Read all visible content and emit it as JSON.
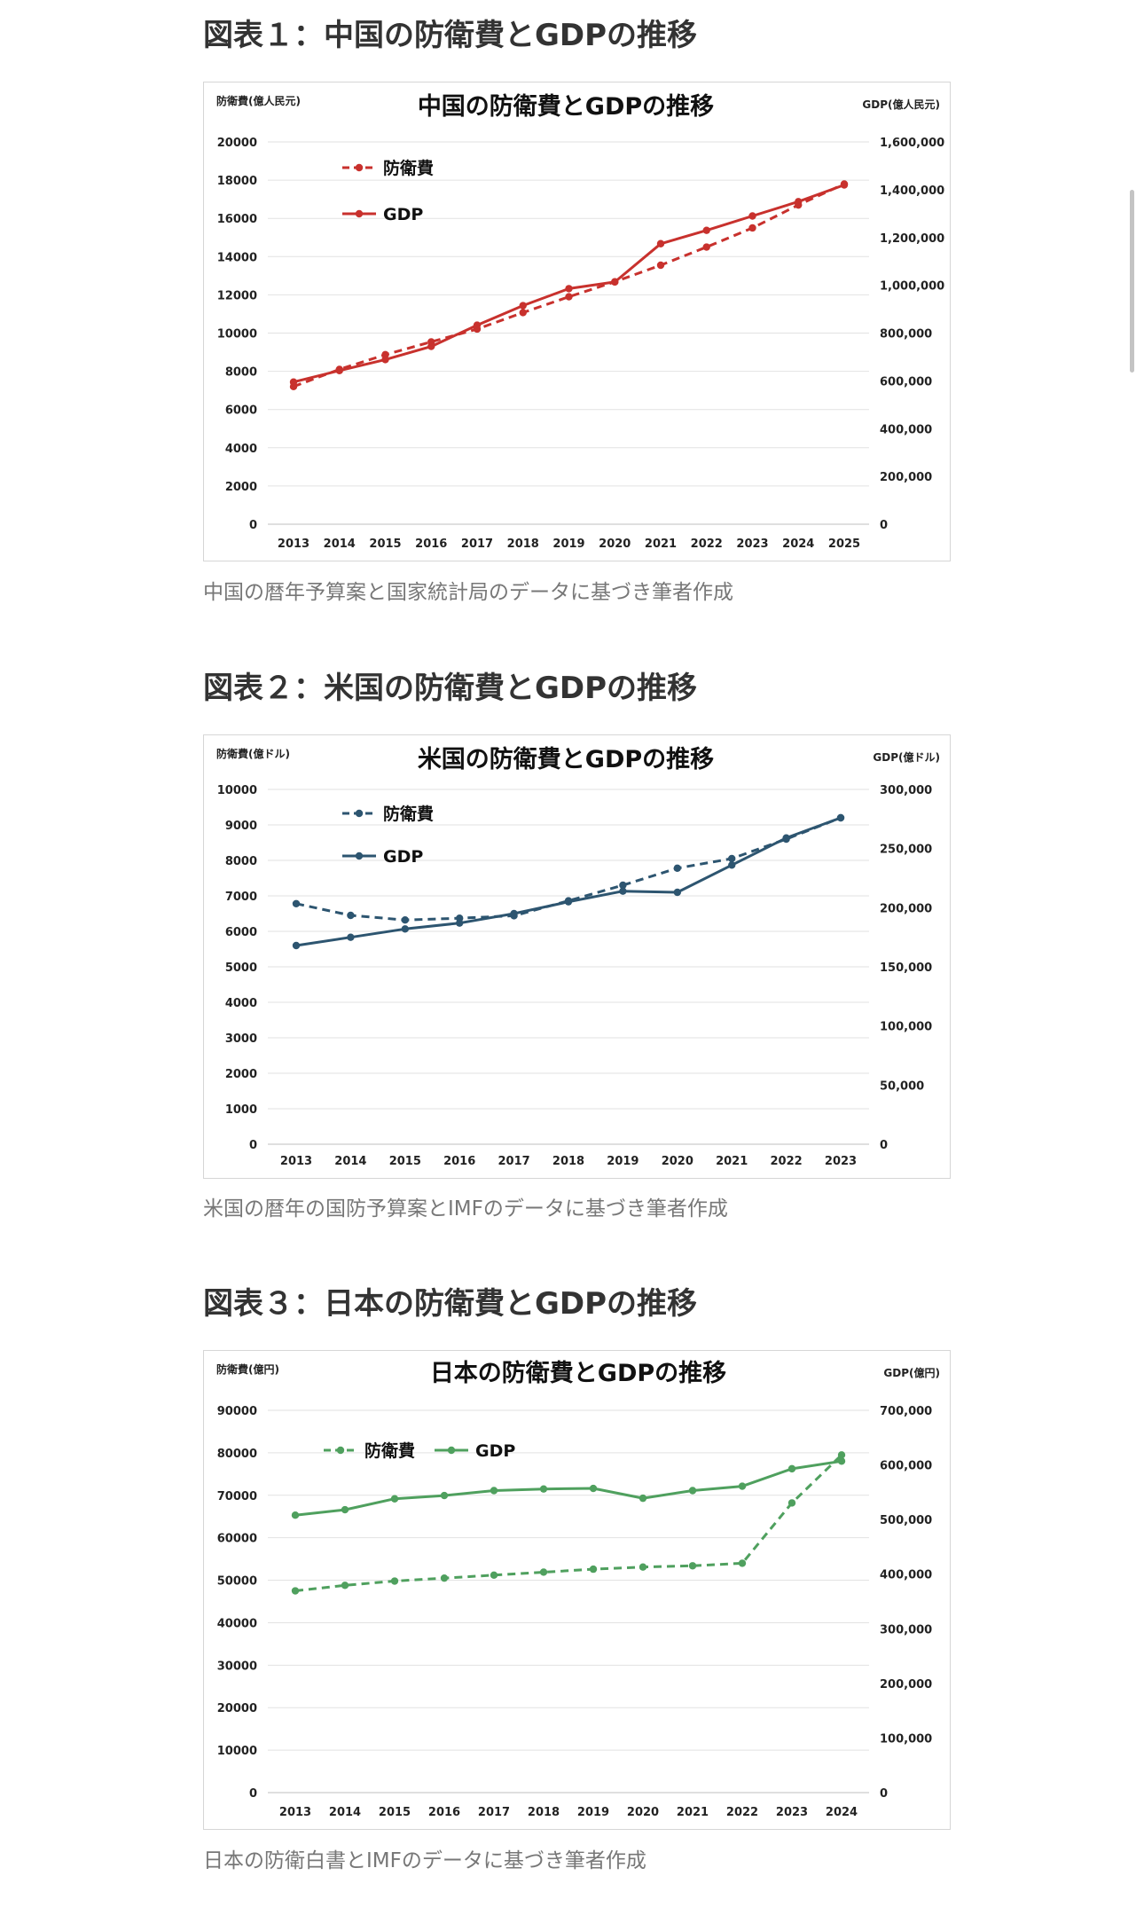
{
  "sections": [
    {
      "heading": "図表１：中国の防衛費とGDPの推移",
      "caption": "中国の暦年予算案と国家統計局のデータに基づき筆者作成"
    },
    {
      "heading": "図表２：米国の防衛費とGDPの推移",
      "caption": "米国の暦年の国防予算案とIMFのデータに基づき筆者作成"
    },
    {
      "heading": "図表３：日本の防衛費とGDPの推移",
      "caption": "日本の防衛白書とIMFのデータに基づき筆者作成"
    }
  ],
  "chart_data": [
    {
      "type": "line",
      "title": "中国の防衛費とGDPの推移",
      "ylabel": "防衛費(億人民元)",
      "y2label": "GDP(億人民元)",
      "color": "#c8312d",
      "legend_position": "top-left-stacked",
      "x": [
        "2013",
        "2014",
        "2015",
        "2016",
        "2017",
        "2018",
        "2019",
        "2020",
        "2021",
        "2022",
        "2023",
        "2024",
        "2025"
      ],
      "ylim": [
        0,
        20000
      ],
      "y_ticks": [
        0,
        2000,
        4000,
        6000,
        8000,
        10000,
        12000,
        14000,
        16000,
        18000,
        20000
      ],
      "y_tick_labels": [
        "0",
        "2000",
        "4000",
        "6000",
        "8000",
        "10000",
        "12000",
        "14000",
        "16000",
        "18000",
        "20000"
      ],
      "y2lim": [
        0,
        1600000
      ],
      "y2_ticks": [
        0,
        200000,
        400000,
        600000,
        800000,
        1000000,
        1200000,
        1400000,
        1600000
      ],
      "y2_tick_labels": [
        "0",
        "200,000",
        "400,000",
        "600,000",
        "800,000",
        "1,000,000",
        "1,200,000",
        "1,400,000",
        "1,600,000"
      ],
      "grid": true,
      "series": [
        {
          "name": "防衛費",
          "axis": "left",
          "style": "dashed",
          "values": [
            7200,
            8100,
            8870,
            9540,
            10210,
            11070,
            11900,
            12680,
            13550,
            14500,
            15500,
            16700,
            17800
          ]
        },
        {
          "name": "GDP",
          "axis": "right",
          "style": "solid",
          "values": [
            595000,
            643000,
            689000,
            744000,
            833000,
            915000,
            986000,
            1014000,
            1174000,
            1230000,
            1290000,
            1350000,
            1420000
          ]
        }
      ]
    },
    {
      "type": "line",
      "title": "米国の防衛費とGDPの推移",
      "ylabel": "防衛費(億ドル)",
      "y2label": "GDP(億ドル)",
      "color": "#2d5570",
      "legend_position": "top-left-stacked",
      "x": [
        "2013",
        "2014",
        "2015",
        "2016",
        "2017",
        "2018",
        "2019",
        "2020",
        "2021",
        "2022",
        "2023"
      ],
      "ylim": [
        0,
        10000
      ],
      "y_ticks": [
        0,
        1000,
        2000,
        3000,
        4000,
        5000,
        6000,
        7000,
        8000,
        9000,
        10000
      ],
      "y_tick_labels": [
        "0",
        "1000",
        "2000",
        "3000",
        "4000",
        "5000",
        "6000",
        "7000",
        "8000",
        "9000",
        "10000"
      ],
      "y2lim": [
        0,
        300000
      ],
      "y2_ticks": [
        0,
        50000,
        100000,
        150000,
        200000,
        250000,
        300000
      ],
      "y2_tick_labels": [
        "0",
        "50,000",
        "100,000",
        "150,000",
        "200,000",
        "250,000",
        "300,000"
      ],
      "grid": true,
      "series": [
        {
          "name": "防衛費",
          "axis": "left",
          "style": "dashed",
          "values": [
            6780,
            6450,
            6320,
            6370,
            6440,
            6860,
            7300,
            7780,
            8050,
            8600,
            9200
          ]
        },
        {
          "name": "GDP",
          "axis": "right",
          "style": "solid",
          "values": [
            168000,
            175000,
            182000,
            187000,
            195000,
            205000,
            214000,
            213000,
            236000,
            259000,
            276000
          ]
        }
      ]
    },
    {
      "type": "line",
      "title": "日本の防衛費とGDPの推移",
      "ylabel": "防衛費(億円)",
      "y2label": "GDP(億円)",
      "color": "#4fa05e",
      "legend_position": "top-left-inline",
      "x": [
        "2013",
        "2014",
        "2015",
        "2016",
        "2017",
        "2018",
        "2019",
        "2020",
        "2021",
        "2022",
        "2023",
        "2024"
      ],
      "ylim": [
        0,
        90000
      ],
      "y_ticks": [
        0,
        10000,
        20000,
        30000,
        40000,
        50000,
        60000,
        70000,
        80000,
        90000
      ],
      "y_tick_labels": [
        "0",
        "10000",
        "20000",
        "30000",
        "40000",
        "50000",
        "60000",
        "70000",
        "80000",
        "90000"
      ],
      "y2lim": [
        0,
        700000
      ],
      "y2_ticks": [
        0,
        100000,
        200000,
        300000,
        400000,
        500000,
        600000,
        700000
      ],
      "y2_tick_labels": [
        "0",
        "100,000",
        "200,000",
        "300,000",
        "400,000",
        "500,000",
        "600,000",
        "700,000"
      ],
      "grid": true,
      "series": [
        {
          "name": "防衛費",
          "axis": "left",
          "style": "dashed",
          "values": [
            47500,
            48800,
            49800,
            50500,
            51200,
            51900,
            52600,
            53100,
            53400,
            54000,
            68200,
            79500
          ]
        },
        {
          "name": "GDP",
          "axis": "right",
          "style": "solid",
          "values": [
            508000,
            518000,
            538000,
            544000,
            553000,
            556000,
            557000,
            539000,
            553000,
            561000,
            593000,
            607000
          ]
        }
      ]
    }
  ]
}
